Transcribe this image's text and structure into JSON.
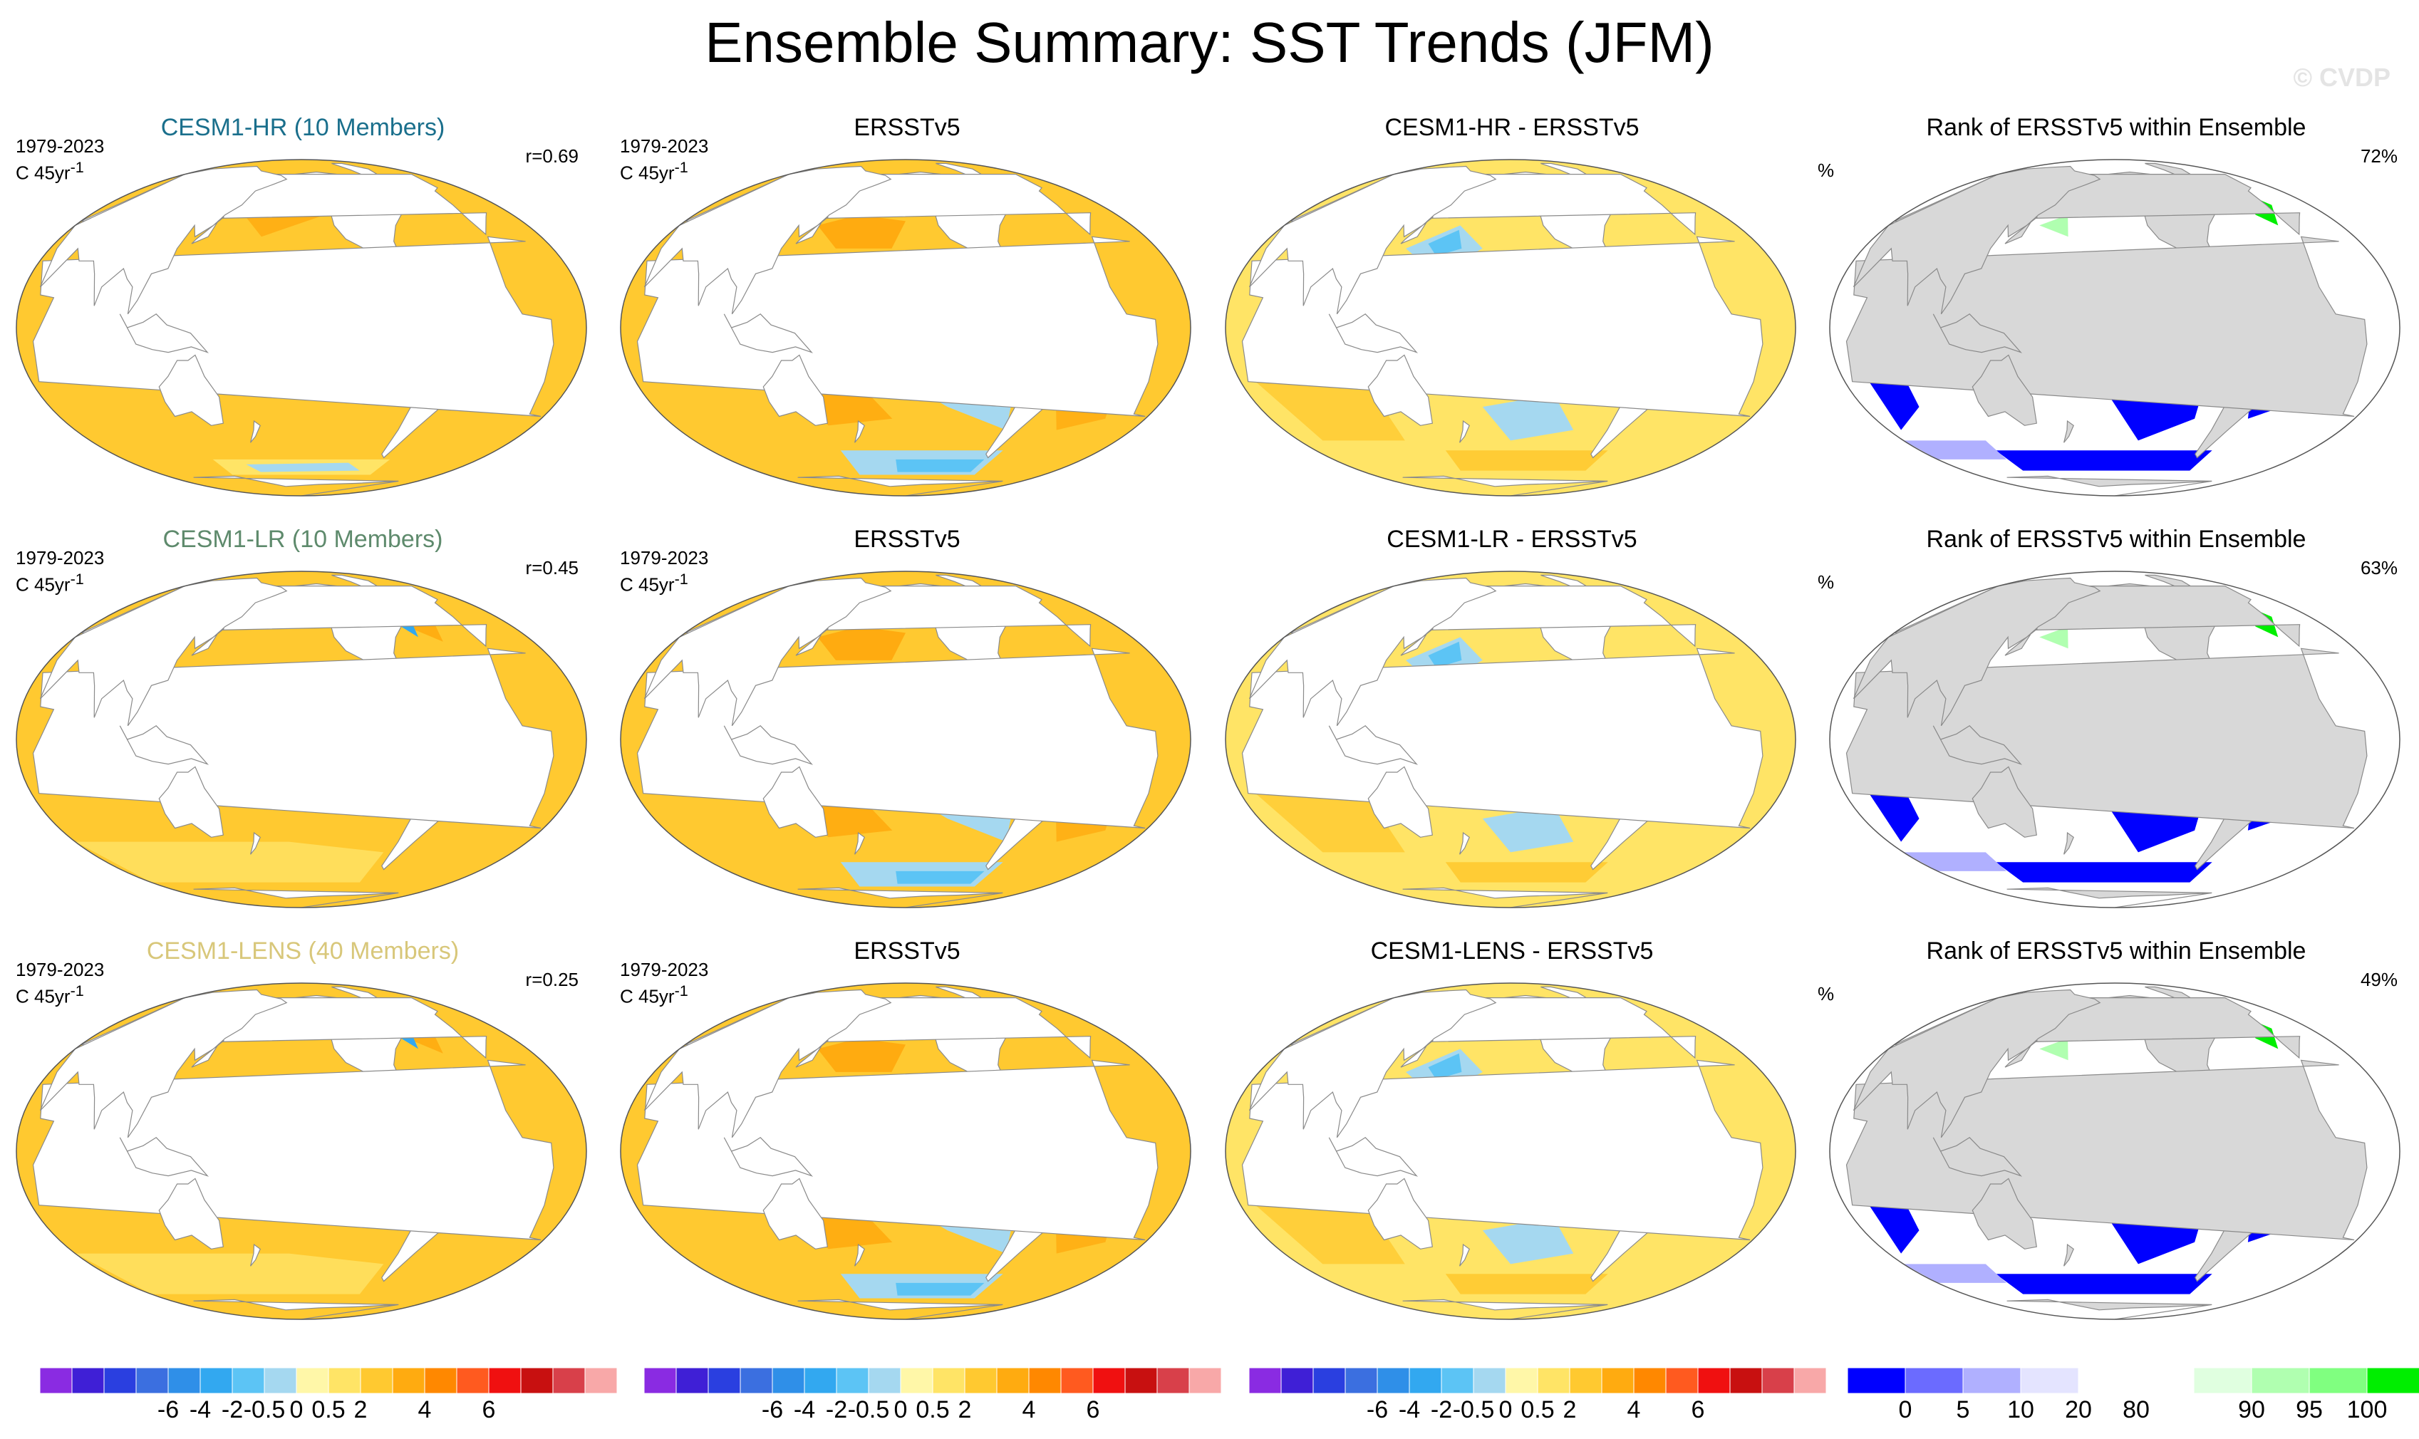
{
  "title": "Ensemble Summary: SST Trends (JFM)",
  "watermark": "© CVDP",
  "rows": [
    {
      "model_panel": {
        "title": "CESM1-HR (10 Members)",
        "period": "1979-2023",
        "unit_prefix": "C 45yr",
        "unit_exp": "-1",
        "corr": "r=0.69"
      },
      "obs_panel": {
        "title": "ERSSTv5",
        "period": "1979-2023",
        "unit_prefix": "C 45yr",
        "unit_exp": "-1"
      },
      "diff_panel": {
        "title": "CESM1-HR - ERSSTv5"
      },
      "rank_panel": {
        "title": "Rank of ERSSTv5 within Ensemble",
        "pct_symbol": "%",
        "pct_value": "72%"
      }
    },
    {
      "model_panel": {
        "title": "CESM1-LR (10 Members)",
        "period": "1979-2023",
        "unit_prefix": "C 45yr",
        "unit_exp": "-1",
        "corr": "r=0.45"
      },
      "obs_panel": {
        "title": "ERSSTv5",
        "period": "1979-2023",
        "unit_prefix": "C 45yr",
        "unit_exp": "-1"
      },
      "diff_panel": {
        "title": "CESM1-LR - ERSSTv5"
      },
      "rank_panel": {
        "title": "Rank of ERSSTv5 within Ensemble",
        "pct_symbol": "%",
        "pct_value": "63%"
      }
    },
    {
      "model_panel": {
        "title": "CESM1-LENS (40 Members)",
        "period": "1979-2023",
        "unit_prefix": "C 45yr",
        "unit_exp": "-1",
        "corr": "r=0.25"
      },
      "obs_panel": {
        "title": "ERSSTv5",
        "period": "1979-2023",
        "unit_prefix": "C 45yr",
        "unit_exp": "-1"
      },
      "diff_panel": {
        "title": "CESM1-LENS - ERSSTv5"
      },
      "rank_panel": {
        "title": "Rank of ERSSTv5 within Ensemble",
        "pct_symbol": "%",
        "pct_value": "49%"
      }
    }
  ],
  "trend_colorbar": {
    "colors": [
      "#8a2be2",
      "#3f1fd6",
      "#2a3fe0",
      "#3b6fe0",
      "#2f8fe8",
      "#32a8f0",
      "#5cc4f5",
      "#a5d8f0",
      "#fff7a8",
      "#ffe466",
      "#ffc930",
      "#ffab10",
      "#ff8800",
      "#ff5a1f",
      "#f01010",
      "#c81010",
      "#d8404a",
      "#f8a8a8"
    ],
    "tick_labels": [
      "-6",
      "-4",
      "-2",
      "-0.5",
      "0",
      "0.5",
      "2",
      "4",
      "6"
    ]
  },
  "rank_colorbar": {
    "colors": [
      "#0000ff",
      "#6b6bff",
      "#b0b0ff",
      "#e4e4ff",
      "#ffffff",
      "#ffffff",
      "#e0ffe0",
      "#b0ffb0",
      "#80ff80",
      "#00ee00"
    ],
    "tick_labels": [
      "0",
      "5",
      "10",
      "20",
      "80",
      "90",
      "95",
      "100"
    ]
  },
  "colors": {
    "land": "#ffffff",
    "rank_land": "#d8d8d8",
    "ocean_warm": "#ffc930",
    "ocean_light": "#ffe466",
    "ocean_pale": "#fff7a8",
    "ocean_cool": "#a5d8f0",
    "ocean_blue": "#5cc4f5",
    "ocean_deep": "#32a8f0",
    "ocean_orange": "#ffab10",
    "rank_low": "#0000ff",
    "rank_high": "#00ee00",
    "rank_mid": "#ffffff",
    "rank_lowish": "#b0b0ff",
    "rank_highish": "#b0ffb0"
  }
}
